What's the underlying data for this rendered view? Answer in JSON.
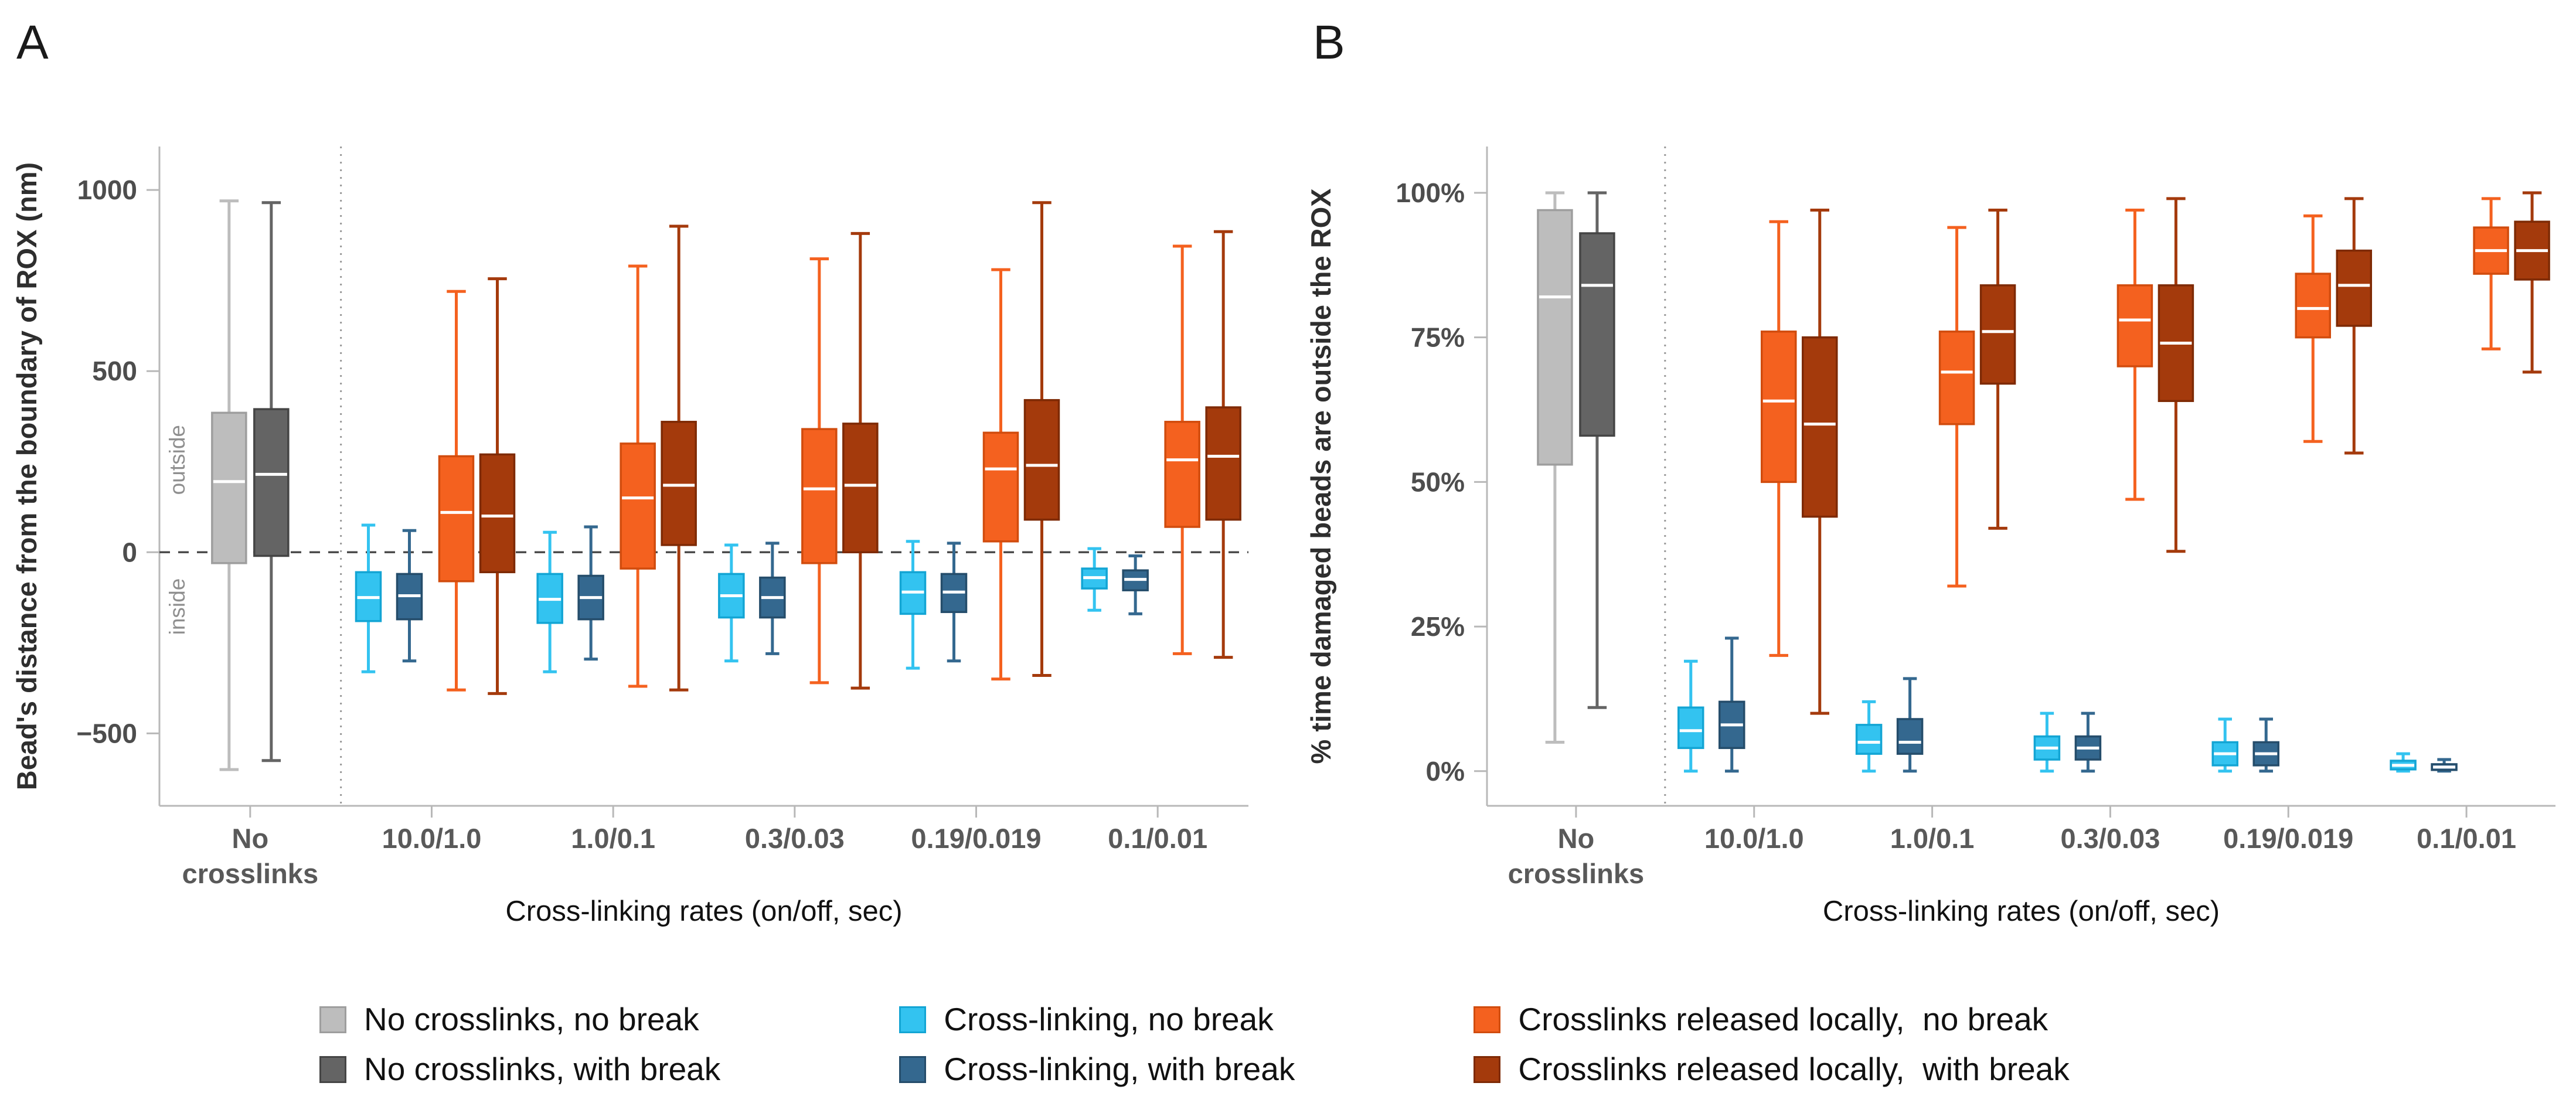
{
  "legend": {
    "items": [
      {
        "label": "No crosslinks, no break",
        "color": "#bdbdbd",
        "stroke": "#9e9e9e"
      },
      {
        "label": "No crosslinks, with break",
        "color": "#646464",
        "stroke": "#454545"
      },
      {
        "label": "Cross-linking, no break",
        "color": "#33c3f0",
        "stroke": "#13a5d4"
      },
      {
        "label": "Cross-linking, with break",
        "color": "#34688f",
        "stroke": "#254d6b"
      },
      {
        "label": "Crosslinks released locally,  no break",
        "color": "#f4611f",
        "stroke": "#d14c0e"
      },
      {
        "label": "Crosslinks released locally,  with break",
        "color": "#a43a0c",
        "stroke": "#7e2a05"
      }
    ]
  },
  "chart_data": [
    {
      "type": "boxplot",
      "panel_label": "A",
      "ylabel": "Bead's distance from the boundary of ROX (nm)",
      "xlabel": "Cross-linking rates (on/off, sec)",
      "ylim": [
        -700,
        1120
      ],
      "yticks": [
        {
          "v": 1000,
          "label": "1000"
        },
        {
          "v": 500,
          "label": "500"
        },
        {
          "v": 0,
          "label": "0"
        },
        {
          "v": -500,
          "label": "−500"
        }
      ],
      "zero_line": 0,
      "region_labels": {
        "above": "outside",
        "above_at": 255,
        "below": "inside",
        "below_at": -150
      },
      "categories": [
        "No\ncrosslinks",
        "10.0/1.0",
        "1.0/0.1",
        "0.3/0.03",
        "0.19/0.019",
        "0.1/0.01"
      ],
      "separator_after": 0,
      "box_format": [
        "whisker_low",
        "q1",
        "median",
        "q3",
        "whisker_high"
      ],
      "series": [
        {
          "name": "No crosslinks, no break",
          "color": "#bdbdbd",
          "stroke": "#9e9e9e",
          "values": [
            [
              -600,
              -30,
              195,
              385,
              970
            ],
            null,
            null,
            null,
            null,
            null
          ]
        },
        {
          "name": "No crosslinks, with break",
          "color": "#646464",
          "stroke": "#454545",
          "values": [
            [
              -575,
              -10,
              215,
              395,
              965
            ],
            null,
            null,
            null,
            null,
            null
          ]
        },
        {
          "name": "Cross-linking, no break",
          "color": "#33c3f0",
          "stroke": "#13a5d4",
          "values": [
            null,
            [
              -330,
              -190,
              -125,
              -55,
              75
            ],
            [
              -330,
              -195,
              -130,
              -60,
              55
            ],
            [
              -300,
              -180,
              -120,
              -60,
              20
            ],
            [
              -320,
              -170,
              -110,
              -55,
              30
            ],
            [
              -160,
              -100,
              -70,
              -45,
              10
            ]
          ]
        },
        {
          "name": "Cross-linking, with break",
          "color": "#34688f",
          "stroke": "#254d6b",
          "values": [
            null,
            [
              -300,
              -185,
              -120,
              -60,
              60
            ],
            [
              -295,
              -185,
              -125,
              -65,
              70
            ],
            [
              -280,
              -180,
              -125,
              -70,
              25
            ],
            [
              -300,
              -165,
              -110,
              -60,
              25
            ],
            [
              -170,
              -105,
              -75,
              -50,
              -10
            ]
          ]
        },
        {
          "name": "Crosslinks released locally, no break",
          "color": "#f4611f",
          "stroke": "#d14c0e",
          "values": [
            null,
            [
              -380,
              -80,
              110,
              265,
              720
            ],
            [
              -370,
              -45,
              150,
              300,
              790
            ],
            [
              -360,
              -30,
              175,
              340,
              810
            ],
            [
              -350,
              30,
              230,
              330,
              780
            ],
            [
              -280,
              70,
              255,
              360,
              845
            ]
          ]
        },
        {
          "name": "Crosslinks released locally, with break",
          "color": "#a43a0c",
          "stroke": "#7e2a05",
          "values": [
            null,
            [
              -390,
              -55,
              100,
              270,
              755
            ],
            [
              -380,
              20,
              185,
              360,
              900
            ],
            [
              -375,
              0,
              185,
              355,
              880
            ],
            [
              -340,
              90,
              240,
              420,
              965
            ],
            [
              -290,
              90,
              265,
              400,
              885
            ]
          ]
        }
      ]
    },
    {
      "type": "boxplot",
      "panel_label": "B",
      "ylabel": "% time damaged beads are outside the ROX",
      "xlabel": "Cross-linking rates (on/off, sec)",
      "ylim": [
        -6,
        108
      ],
      "yticks": [
        {
          "v": 100,
          "label": "100%"
        },
        {
          "v": 75,
          "label": "75%"
        },
        {
          "v": 50,
          "label": "50%"
        },
        {
          "v": 25,
          "label": "25%"
        },
        {
          "v": 0,
          "label": "0%"
        }
      ],
      "zero_line": null,
      "region_labels": null,
      "categories": [
        "No\ncrosslinks",
        "10.0/1.0",
        "1.0/0.1",
        "0.3/0.03",
        "0.19/0.019",
        "0.1/0.01"
      ],
      "separator_after": 0,
      "box_format": [
        "whisker_low",
        "q1",
        "median",
        "q3",
        "whisker_high"
      ],
      "series": [
        {
          "name": "No crosslinks, no break",
          "color": "#bdbdbd",
          "stroke": "#9e9e9e",
          "values": [
            [
              5,
              53,
              82,
              97,
              100
            ],
            null,
            null,
            null,
            null,
            null
          ]
        },
        {
          "name": "No crosslinks, with break",
          "color": "#646464",
          "stroke": "#454545",
          "values": [
            [
              11,
              58,
              84,
              93,
              100
            ],
            null,
            null,
            null,
            null,
            null
          ]
        },
        {
          "name": "Cross-linking, no break",
          "color": "#33c3f0",
          "stroke": "#13a5d4",
          "values": [
            null,
            [
              0,
              4,
              7,
              11,
              19
            ],
            [
              0,
              3,
              5,
              8,
              12
            ],
            [
              0,
              2,
              4,
              6,
              10
            ],
            [
              0,
              1,
              3,
              5,
              9
            ],
            [
              0,
              0.3,
              1,
              1.8,
              3
            ]
          ]
        },
        {
          "name": "Cross-linking, with break",
          "color": "#34688f",
          "stroke": "#254d6b",
          "values": [
            null,
            [
              0,
              4,
              8,
              12,
              23
            ],
            [
              0,
              3,
              5,
              9,
              16
            ],
            [
              0,
              2,
              4,
              6,
              10
            ],
            [
              0,
              1,
              3,
              5,
              9
            ],
            [
              0,
              0.2,
              0.7,
              1.2,
              2
            ]
          ]
        },
        {
          "name": "Crosslinks released locally, no break",
          "color": "#f4611f",
          "stroke": "#d14c0e",
          "values": [
            null,
            [
              20,
              50,
              64,
              76,
              95
            ],
            [
              32,
              60,
              69,
              76,
              94
            ],
            [
              47,
              70,
              78,
              84,
              97
            ],
            [
              57,
              75,
              80,
              86,
              96
            ],
            [
              73,
              86,
              90,
              94,
              99
            ]
          ]
        },
        {
          "name": "Crosslinks released locally, with break",
          "color": "#a43a0c",
          "stroke": "#7e2a05",
          "values": [
            null,
            [
              10,
              44,
              60,
              75,
              97
            ],
            [
              42,
              67,
              76,
              84,
              97
            ],
            [
              38,
              64,
              74,
              84,
              99
            ],
            [
              55,
              77,
              84,
              90,
              99
            ],
            [
              69,
              85,
              90,
              95,
              100
            ]
          ]
        }
      ]
    }
  ]
}
